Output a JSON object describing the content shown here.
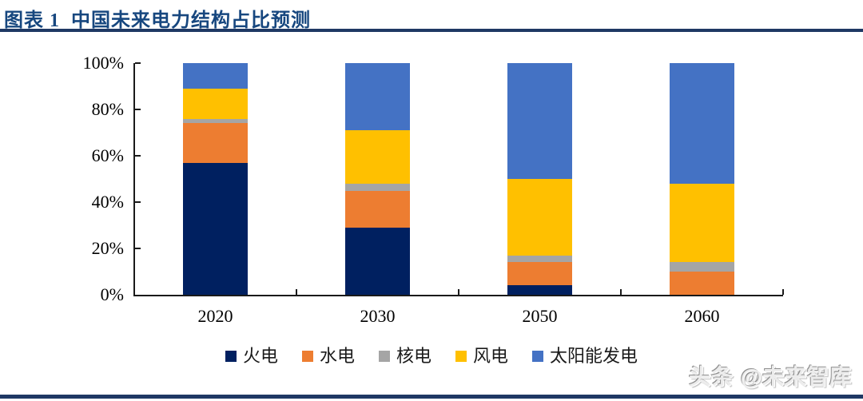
{
  "header": {
    "title": "图表 1  中国未来电力结构占比预测"
  },
  "watermark": {
    "text": "头条 @未来智库"
  },
  "colors": {
    "title_text": "#17477F",
    "rule_line": "#1F3864",
    "axis_line": "#1a1a1a"
  },
  "chart_data": {
    "type": "bar",
    "stacked": true,
    "percent_stacked": true,
    "title": "中国未来电力结构占比预测",
    "categories": [
      "2020",
      "2030",
      "2050",
      "2060"
    ],
    "series": [
      {
        "key": "thermal",
        "name": "火电",
        "color": "#002060",
        "values": [
          57,
          29,
          4,
          0
        ]
      },
      {
        "key": "hydro",
        "name": "水电",
        "color": "#ED7D31",
        "values": [
          17,
          16,
          10,
          10
        ]
      },
      {
        "key": "nuclear",
        "name": "核电",
        "color": "#A5A5A5",
        "values": [
          2,
          3,
          3,
          4
        ]
      },
      {
        "key": "wind",
        "name": "风电",
        "color": "#FFC000",
        "values": [
          13,
          23,
          33,
          34
        ]
      },
      {
        "key": "solar",
        "name": "太阳能发电",
        "color": "#4472C4",
        "values": [
          11,
          29,
          50,
          52
        ]
      }
    ],
    "xlabel": "",
    "ylabel": "",
    "ylim": [
      0,
      100
    ],
    "yticks": [
      "0%",
      "20%",
      "40%",
      "60%",
      "80%",
      "100%"
    ],
    "grid": false,
    "legend_position": "bottom"
  }
}
